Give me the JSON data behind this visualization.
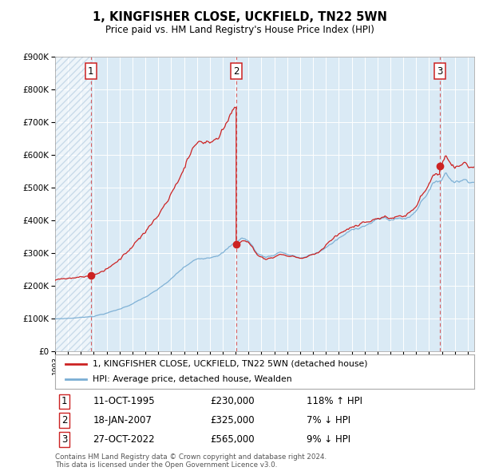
{
  "title": "1, KINGFISHER CLOSE, UCKFIELD, TN22 5WN",
  "subtitle": "Price paid vs. HM Land Registry's House Price Index (HPI)",
  "hpi_color": "#7aaed4",
  "price_color": "#cc2222",
  "plot_bg": "#daeaf5",
  "ylim": [
    0,
    900000
  ],
  "yticks": [
    0,
    100000,
    200000,
    300000,
    400000,
    500000,
    600000,
    700000,
    800000,
    900000
  ],
  "sales": [
    {
      "label": "1",
      "date": "11-OCT-1995",
      "price": 230000,
      "hpi_pct": "118% ↑ HPI",
      "x_year": 1995.78
    },
    {
      "label": "2",
      "date": "18-JAN-2007",
      "price": 325000,
      "hpi_pct": "7% ↓ HPI",
      "x_year": 2007.04
    },
    {
      "label": "3",
      "date": "27-OCT-2022",
      "price": 565000,
      "hpi_pct": "9% ↓ HPI",
      "x_year": 2022.82
    }
  ],
  "legend_line1": "1, KINGFISHER CLOSE, UCKFIELD, TN22 5WN (detached house)",
  "legend_line2": "HPI: Average price, detached house, Wealden",
  "footnote": "Contains HM Land Registry data © Crown copyright and database right 2024.\nThis data is licensed under the Open Government Licence v3.0.",
  "xmin": 1993.0,
  "xmax": 2025.5
}
